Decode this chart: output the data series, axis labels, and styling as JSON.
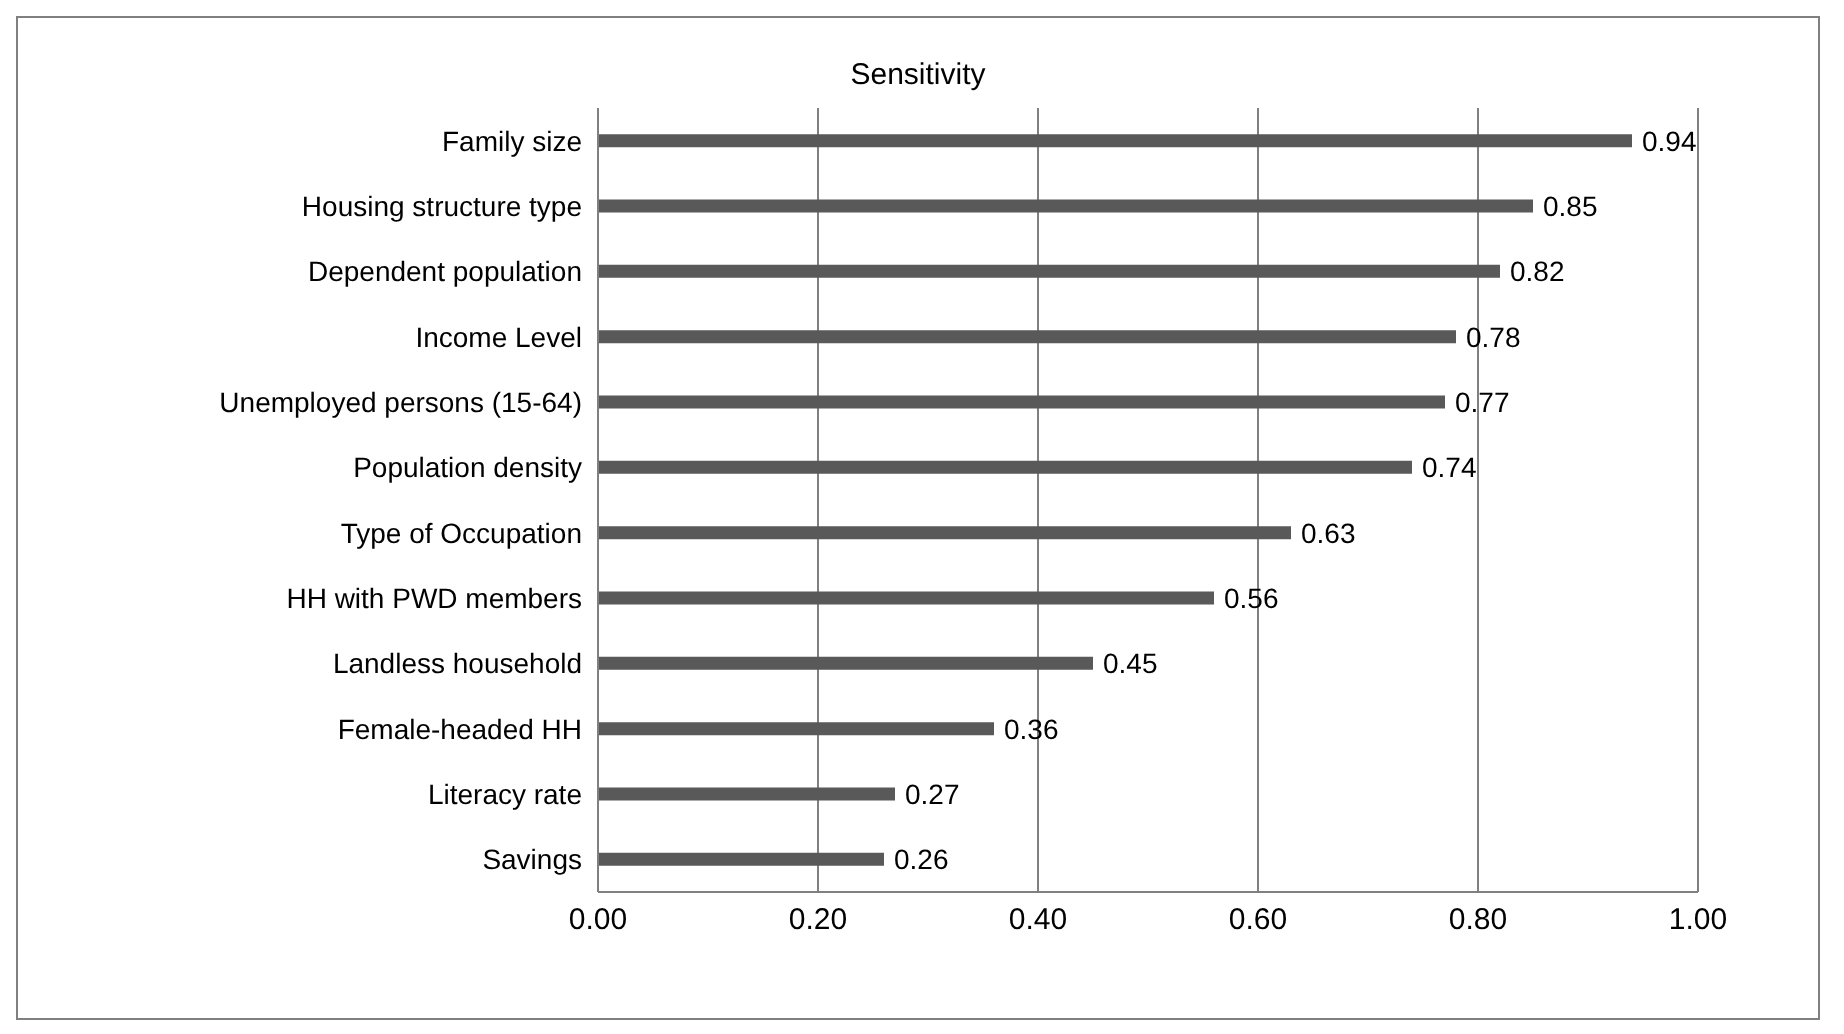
{
  "chart_data": {
    "type": "bar",
    "orientation": "horizontal",
    "title": "Sensitivity",
    "categories": [
      "Family size",
      "Housing structure type",
      "Dependent population",
      "Income Level",
      "Unemployed persons (15-64)",
      "Population density",
      "Type of Occupation",
      "HH with PWD members",
      "Landless household",
      "Female-headed HH",
      "Literacy rate",
      "Savings"
    ],
    "values": [
      0.94,
      0.85,
      0.82,
      0.78,
      0.77,
      0.74,
      0.63,
      0.56,
      0.45,
      0.36,
      0.27,
      0.26
    ],
    "color": "#595959",
    "xlim": [
      0,
      1
    ],
    "xticks": [
      "0.00",
      "0.20",
      "0.40",
      "0.60",
      "0.80",
      "1.00"
    ],
    "grid": "x",
    "data_labels": true,
    "legend": false
  }
}
